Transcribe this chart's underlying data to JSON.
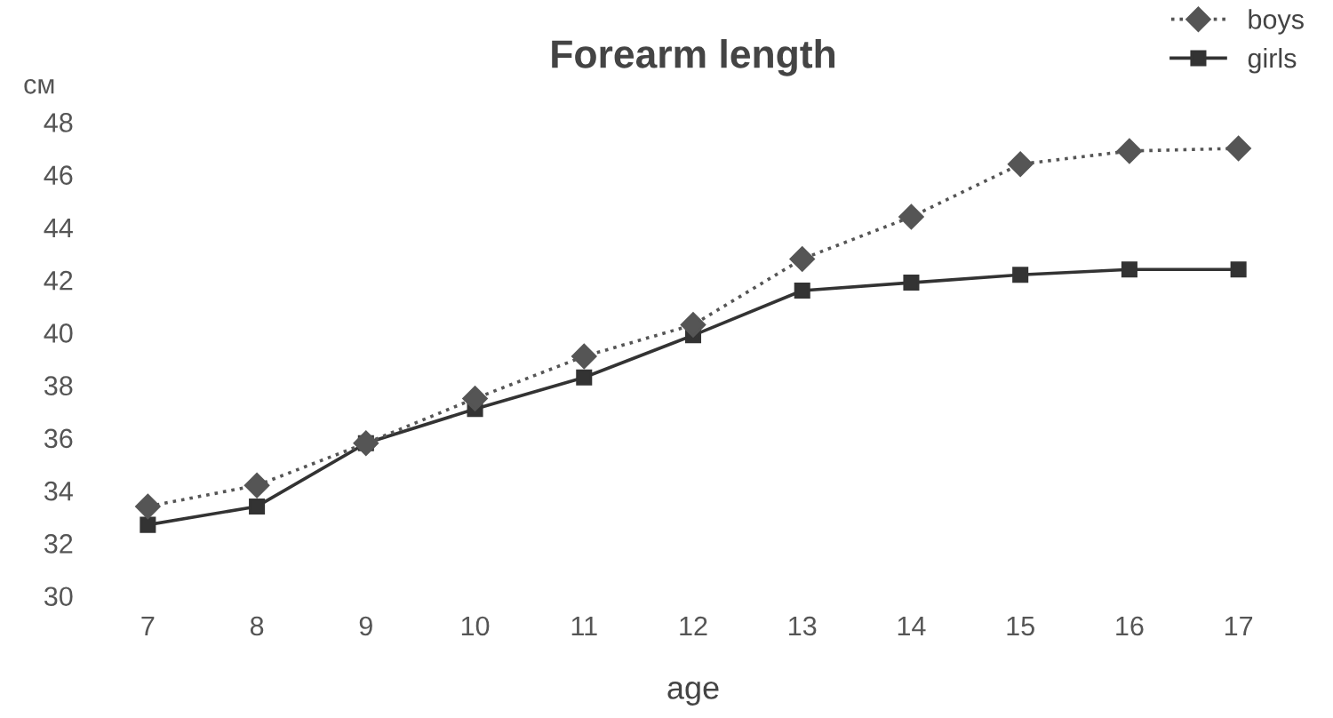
{
  "chart_data": {
    "type": "line",
    "title": "Forearm length",
    "xlabel": "age",
    "ylabel": "см",
    "categories": [
      "7",
      "8",
      "9",
      "10",
      "11",
      "12",
      "13",
      "14",
      "15",
      "16",
      "17"
    ],
    "series": [
      {
        "name": "boys",
        "color": "#555555",
        "values": [
          33.4,
          34.2,
          35.8,
          37.5,
          39.1,
          40.3,
          42.8,
          44.4,
          46.4,
          46.9,
          47.0
        ],
        "line_style": "dotted",
        "marker": "diamond"
      },
      {
        "name": "girls",
        "color": "#333333",
        "values": [
          32.7,
          33.4,
          35.8,
          37.1,
          38.3,
          39.9,
          41.6,
          41.9,
          42.2,
          42.4,
          42.4
        ],
        "line_style": "solid",
        "marker": "square"
      }
    ],
    "ylim": [
      30,
      48
    ],
    "yticks": [
      30,
      32,
      34,
      36,
      38,
      40,
      42,
      44,
      46,
      48
    ],
    "grid": false,
    "legend": "top right"
  }
}
